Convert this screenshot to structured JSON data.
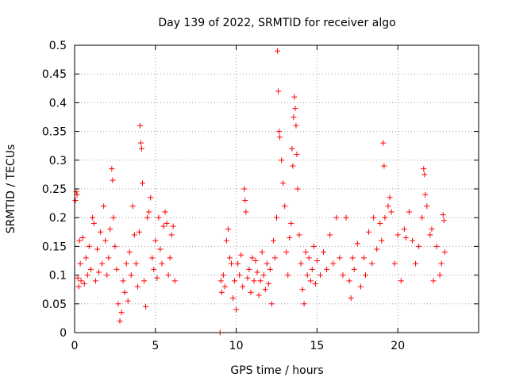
{
  "chart_data": {
    "type": "scatter",
    "title": "Day 139 of 2022, SRMTID for receiver algo",
    "xlabel": "GPS time / hours",
    "ylabel": "SRMTID / TECUs",
    "xlim": [
      0,
      25
    ],
    "ylim": [
      0,
      0.5
    ],
    "x_ticks": [
      0,
      5,
      10,
      15,
      20
    ],
    "x_tick_labels": [
      "0",
      "5",
      "10",
      "15",
      "20"
    ],
    "y_ticks": [
      0,
      0.05,
      0.1,
      0.15,
      0.2,
      0.25,
      0.3,
      0.35,
      0.4,
      0.45,
      0.5
    ],
    "y_tick_labels": [
      "0",
      "0.05",
      "0.1",
      "0.15",
      "0.2",
      "0.25",
      "0.3",
      "0.35",
      "0.4",
      "0.45",
      "0.5"
    ],
    "grid": true,
    "marker": "+",
    "color": "#ff0000",
    "series": [
      {
        "name": "SRMTID",
        "points": [
          [
            0.05,
            0.23
          ],
          [
            0.1,
            0.245
          ],
          [
            0.15,
            0.24
          ],
          [
            0.2,
            0.095
          ],
          [
            0.25,
            0.08
          ],
          [
            0.3,
            0.16
          ],
          [
            0.35,
            0.12
          ],
          [
            0.4,
            0.09
          ],
          [
            0.5,
            0.165
          ],
          [
            0.6,
            0.085
          ],
          [
            0.7,
            0.13
          ],
          [
            0.8,
            0.1
          ],
          [
            0.9,
            0.15
          ],
          [
            1.0,
            0.11
          ],
          [
            1.1,
            0.2
          ],
          [
            1.2,
            0.19
          ],
          [
            1.3,
            0.09
          ],
          [
            1.4,
            0.145
          ],
          [
            1.5,
            0.105
          ],
          [
            1.6,
            0.175
          ],
          [
            1.7,
            0.12
          ],
          [
            1.8,
            0.22
          ],
          [
            1.9,
            0.16
          ],
          [
            2.0,
            0.1
          ],
          [
            2.1,
            0.13
          ],
          [
            2.2,
            0.18
          ],
          [
            2.3,
            0.285
          ],
          [
            2.35,
            0.265
          ],
          [
            2.4,
            0.2
          ],
          [
            2.5,
            0.15
          ],
          [
            2.6,
            0.11
          ],
          [
            2.7,
            0.05
          ],
          [
            2.8,
            0.02
          ],
          [
            2.9,
            0.035
          ],
          [
            3.0,
            0.09
          ],
          [
            3.1,
            0.07
          ],
          [
            3.2,
            0.12
          ],
          [
            3.3,
            0.055
          ],
          [
            3.4,
            0.14
          ],
          [
            3.5,
            0.1
          ],
          [
            3.6,
            0.22
          ],
          [
            3.7,
            0.17
          ],
          [
            3.8,
            0.12
          ],
          [
            3.9,
            0.08
          ],
          [
            4.0,
            0.175
          ],
          [
            4.05,
            0.36
          ],
          [
            4.1,
            0.33
          ],
          [
            4.15,
            0.32
          ],
          [
            4.2,
            0.26
          ],
          [
            4.3,
            0.09
          ],
          [
            4.4,
            0.045
          ],
          [
            4.5,
            0.2
          ],
          [
            4.6,
            0.21
          ],
          [
            4.7,
            0.235
          ],
          [
            4.8,
            0.13
          ],
          [
            4.9,
            0.11
          ],
          [
            5.0,
            0.16
          ],
          [
            5.1,
            0.095
          ],
          [
            5.2,
            0.2
          ],
          [
            5.3,
            0.145
          ],
          [
            5.4,
            0.12
          ],
          [
            5.5,
            0.185
          ],
          [
            5.6,
            0.21
          ],
          [
            5.7,
            0.19
          ],
          [
            5.8,
            0.1
          ],
          [
            5.9,
            0.13
          ],
          [
            6.0,
            0.17
          ],
          [
            6.1,
            0.185
          ],
          [
            6.2,
            0.09
          ],
          [
            9.0,
            0.0
          ],
          [
            9.05,
            0.09
          ],
          [
            9.1,
            0.07
          ],
          [
            9.2,
            0.1
          ],
          [
            9.3,
            0.08
          ],
          [
            9.4,
            0.16
          ],
          [
            9.5,
            0.18
          ],
          [
            9.6,
            0.13
          ],
          [
            9.7,
            0.12
          ],
          [
            9.8,
            0.06
          ],
          [
            9.9,
            0.09
          ],
          [
            10.0,
            0.04
          ],
          [
            10.1,
            0.12
          ],
          [
            10.2,
            0.1
          ],
          [
            10.3,
            0.135
          ],
          [
            10.4,
            0.08
          ],
          [
            10.5,
            0.25
          ],
          [
            10.55,
            0.23
          ],
          [
            10.6,
            0.21
          ],
          [
            10.7,
            0.095
          ],
          [
            10.8,
            0.11
          ],
          [
            10.9,
            0.07
          ],
          [
            11.0,
            0.13
          ],
          [
            11.1,
            0.09
          ],
          [
            11.2,
            0.125
          ],
          [
            11.3,
            0.105
          ],
          [
            11.4,
            0.065
          ],
          [
            11.5,
            0.09
          ],
          [
            11.6,
            0.14
          ],
          [
            11.7,
            0.1
          ],
          [
            11.8,
            0.075
          ],
          [
            11.9,
            0.12
          ],
          [
            12.0,
            0.085
          ],
          [
            12.1,
            0.11
          ],
          [
            12.2,
            0.05
          ],
          [
            12.3,
            0.16
          ],
          [
            12.4,
            0.13
          ],
          [
            12.5,
            0.2
          ],
          [
            12.55,
            0.49
          ],
          [
            12.6,
            0.42
          ],
          [
            12.65,
            0.35
          ],
          [
            12.7,
            0.34
          ],
          [
            12.8,
            0.3
          ],
          [
            12.9,
            0.26
          ],
          [
            13.0,
            0.22
          ],
          [
            13.1,
            0.14
          ],
          [
            13.2,
            0.1
          ],
          [
            13.3,
            0.165
          ],
          [
            13.4,
            0.19
          ],
          [
            13.45,
            0.32
          ],
          [
            13.5,
            0.29
          ],
          [
            13.55,
            0.375
          ],
          [
            13.6,
            0.41
          ],
          [
            13.65,
            0.39
          ],
          [
            13.7,
            0.36
          ],
          [
            13.75,
            0.31
          ],
          [
            13.8,
            0.25
          ],
          [
            13.9,
            0.17
          ],
          [
            14.0,
            0.12
          ],
          [
            14.1,
            0.075
          ],
          [
            14.2,
            0.05
          ],
          [
            14.3,
            0.14
          ],
          [
            14.4,
            0.1
          ],
          [
            14.5,
            0.13
          ],
          [
            14.6,
            0.09
          ],
          [
            14.7,
            0.11
          ],
          [
            14.8,
            0.15
          ],
          [
            14.9,
            0.085
          ],
          [
            15.0,
            0.125
          ],
          [
            15.2,
            0.1
          ],
          [
            15.4,
            0.14
          ],
          [
            15.6,
            0.11
          ],
          [
            15.8,
            0.17
          ],
          [
            16.0,
            0.12
          ],
          [
            16.2,
            0.2
          ],
          [
            16.4,
            0.13
          ],
          [
            16.6,
            0.1
          ],
          [
            16.8,
            0.2
          ],
          [
            17.0,
            0.09
          ],
          [
            17.1,
            0.06
          ],
          [
            17.2,
            0.13
          ],
          [
            17.3,
            0.11
          ],
          [
            17.5,
            0.155
          ],
          [
            17.7,
            0.08
          ],
          [
            17.9,
            0.13
          ],
          [
            18.0,
            0.1
          ],
          [
            18.2,
            0.175
          ],
          [
            18.4,
            0.12
          ],
          [
            18.5,
            0.2
          ],
          [
            18.7,
            0.145
          ],
          [
            18.9,
            0.19
          ],
          [
            19.0,
            0.16
          ],
          [
            19.1,
            0.33
          ],
          [
            19.15,
            0.29
          ],
          [
            19.2,
            0.2
          ],
          [
            19.4,
            0.22
          ],
          [
            19.5,
            0.235
          ],
          [
            19.6,
            0.21
          ],
          [
            19.8,
            0.12
          ],
          [
            20.0,
            0.17
          ],
          [
            20.2,
            0.09
          ],
          [
            20.4,
            0.18
          ],
          [
            20.5,
            0.165
          ],
          [
            20.7,
            0.21
          ],
          [
            20.9,
            0.16
          ],
          [
            21.1,
            0.12
          ],
          [
            21.3,
            0.15
          ],
          [
            21.5,
            0.2
          ],
          [
            21.6,
            0.285
          ],
          [
            21.65,
            0.275
          ],
          [
            21.7,
            0.24
          ],
          [
            21.8,
            0.22
          ],
          [
            22.0,
            0.17
          ],
          [
            22.1,
            0.18
          ],
          [
            22.2,
            0.09
          ],
          [
            22.4,
            0.15
          ],
          [
            22.6,
            0.1
          ],
          [
            22.7,
            0.12
          ],
          [
            22.8,
            0.205
          ],
          [
            22.85,
            0.195
          ],
          [
            22.9,
            0.14
          ]
        ]
      }
    ]
  }
}
